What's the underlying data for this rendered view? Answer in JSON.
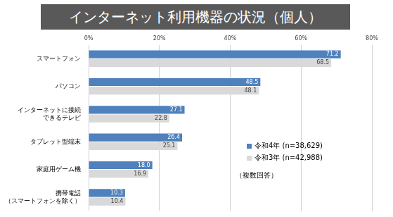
{
  "chart_data": {
    "type": "bar",
    "orientation": "horizontal",
    "title": "インターネット利用機器の状況（個人）",
    "annotations": [
      "（複数回答）"
    ],
    "categories": [
      [
        "スマートフォン"
      ],
      [
        "パソコン"
      ],
      [
        "インターネットに接続",
        "できるテレビ"
      ],
      [
        "タブレット型端末"
      ],
      [
        "家庭用ゲーム機"
      ],
      [
        "携帯電話",
        "（スマートフォンを除く）"
      ]
    ],
    "series": [
      {
        "name": "令和4年 (n=38,629)",
        "color": "#4f81bd",
        "values": [
          71.2,
          48.5,
          27.1,
          26.4,
          18.0,
          10.3
        ],
        "value_labels": [
          "71.2",
          "48.5",
          "27.1",
          "26.4",
          "18.0",
          "10.3"
        ]
      },
      {
        "name": "令和3年 (n=42,988)",
        "color": "#d9d9d9",
        "values": [
          68.5,
          48.1,
          22.8,
          25.1,
          16.9,
          10.4
        ],
        "value_labels": [
          "68.5",
          "48.1",
          "22.8",
          "25.1",
          "16.9",
          "10.4"
        ]
      }
    ],
    "xlim": [
      0,
      80
    ],
    "xticks": [
      {
        "value": 0,
        "label": "0%"
      },
      {
        "value": 20,
        "label": "20%"
      },
      {
        "value": 40,
        "label": "40%"
      },
      {
        "value": 60,
        "label": "60%"
      },
      {
        "value": 80,
        "label": "80%"
      }
    ],
    "grid": true,
    "legend": "right",
    "data_labels": true
  }
}
